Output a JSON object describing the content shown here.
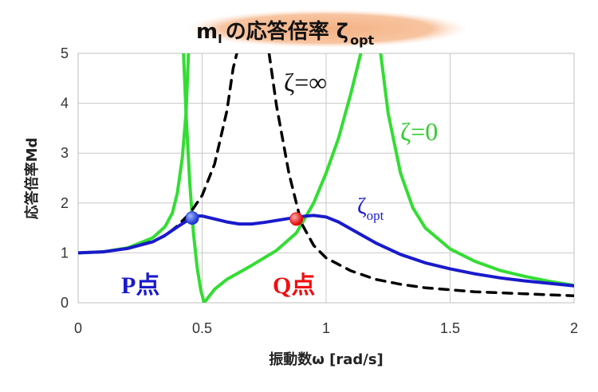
{
  "chart_data": {
    "type": "line",
    "title": {
      "main": "m",
      "sub": "I",
      "rest": "の応答倍率 ζ",
      "subscript": "opt"
    },
    "xlabel": "振動数ω [rad/s]",
    "ylabel": "応答倍率Md",
    "xlim": [
      0,
      2
    ],
    "ylim": [
      0,
      5
    ],
    "x_ticks": [
      "0",
      "0.5",
      "1",
      "1.5",
      "2"
    ],
    "y_ticks": [
      "0",
      "1",
      "2",
      "3",
      "4",
      "5"
    ],
    "grid": true,
    "series": [
      {
        "name": "ζ=∞",
        "label": "ζ=∞",
        "color": "#000000",
        "dash": true,
        "points": [
          [
            0,
            1.0
          ],
          [
            0.1,
            1.02
          ],
          [
            0.2,
            1.09
          ],
          [
            0.3,
            1.23
          ],
          [
            0.35,
            1.34
          ],
          [
            0.4,
            1.54
          ],
          [
            0.45,
            1.79
          ],
          [
            0.5,
            2.15
          ],
          [
            0.55,
            2.78
          ],
          [
            0.6,
            3.85
          ],
          [
            0.625,
            4.7
          ],
          [
            0.64,
            5.0
          ]
        ],
        "points2": [
          [
            0.77,
            5.0
          ],
          [
            0.8,
            3.95
          ],
          [
            0.85,
            2.6
          ],
          [
            0.9,
            1.6
          ],
          [
            0.95,
            1.15
          ],
          [
            1.0,
            0.9
          ],
          [
            1.1,
            0.64
          ],
          [
            1.2,
            0.47
          ],
          [
            1.3,
            0.37
          ],
          [
            1.4,
            0.3
          ],
          [
            1.5,
            0.26
          ],
          [
            1.6,
            0.22
          ],
          [
            1.7,
            0.2
          ],
          [
            1.8,
            0.18
          ],
          [
            1.9,
            0.16
          ],
          [
            2.0,
            0.14
          ]
        ]
      },
      {
        "name": "ζ=0",
        "label": "ζ=0",
        "color": "#33dd33",
        "dash": false,
        "seg1": [
          [
            0,
            1.0
          ],
          [
            0.1,
            1.02
          ],
          [
            0.2,
            1.1
          ],
          [
            0.3,
            1.3
          ],
          [
            0.35,
            1.52
          ],
          [
            0.38,
            1.8
          ],
          [
            0.4,
            2.2
          ],
          [
            0.42,
            2.9
          ],
          [
            0.435,
            3.8
          ],
          [
            0.445,
            5.0
          ]
        ],
        "seg2": [
          [
            0.425,
            5.0
          ],
          [
            0.435,
            3.8
          ],
          [
            0.45,
            2.4
          ],
          [
            0.465,
            1.4
          ],
          [
            0.48,
            0.7
          ],
          [
            0.495,
            0.25
          ],
          [
            0.508,
            0.0
          ],
          [
            0.55,
            0.27
          ],
          [
            0.6,
            0.47
          ],
          [
            0.7,
            0.75
          ],
          [
            0.8,
            1.05
          ],
          [
            0.88,
            1.4
          ],
          [
            0.95,
            2.0
          ],
          [
            1.0,
            2.6
          ],
          [
            1.05,
            3.3
          ],
          [
            1.1,
            4.2
          ],
          [
            1.14,
            5.0
          ]
        ],
        "seg3": [
          [
            1.22,
            5.0
          ],
          [
            1.25,
            3.8
          ],
          [
            1.3,
            2.6
          ],
          [
            1.35,
            1.9
          ],
          [
            1.4,
            1.5
          ],
          [
            1.5,
            1.08
          ],
          [
            1.6,
            0.83
          ],
          [
            1.7,
            0.65
          ],
          [
            1.8,
            0.53
          ],
          [
            1.9,
            0.43
          ],
          [
            2.0,
            0.35
          ]
        ]
      },
      {
        "name": "ζopt",
        "label": "ζ",
        "label_sub": "opt",
        "color": "#1a1acc",
        "dash": false,
        "points": [
          [
            0,
            1.0
          ],
          [
            0.1,
            1.02
          ],
          [
            0.2,
            1.09
          ],
          [
            0.3,
            1.22
          ],
          [
            0.35,
            1.35
          ],
          [
            0.4,
            1.52
          ],
          [
            0.45,
            1.68
          ],
          [
            0.48,
            1.74
          ],
          [
            0.5,
            1.74
          ],
          [
            0.55,
            1.68
          ],
          [
            0.6,
            1.62
          ],
          [
            0.65,
            1.58
          ],
          [
            0.7,
            1.58
          ],
          [
            0.75,
            1.61
          ],
          [
            0.8,
            1.65
          ],
          [
            0.85,
            1.69
          ],
          [
            0.88,
            1.71
          ],
          [
            0.92,
            1.74
          ],
          [
            0.95,
            1.75
          ],
          [
            1.0,
            1.72
          ],
          [
            1.05,
            1.62
          ],
          [
            1.1,
            1.48
          ],
          [
            1.2,
            1.2
          ],
          [
            1.3,
            0.97
          ],
          [
            1.4,
            0.8
          ],
          [
            1.5,
            0.68
          ],
          [
            1.6,
            0.58
          ],
          [
            1.7,
            0.5
          ],
          [
            1.8,
            0.44
          ],
          [
            1.9,
            0.39
          ],
          [
            2.0,
            0.34
          ]
        ]
      }
    ],
    "points": [
      {
        "name": "P点",
        "x": 0.46,
        "y": 1.7,
        "color": "#1a3fdd"
      },
      {
        "name": "Q点",
        "x": 0.88,
        "y": 1.68,
        "color": "#ee1111"
      }
    ]
  }
}
